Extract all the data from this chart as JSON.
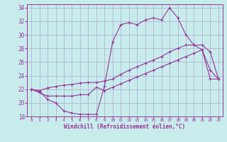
{
  "title": "",
  "xlabel": "Windchill (Refroidissement éolien,°C)",
  "bg_color": "#c8ecec",
  "line_color": "#993399",
  "grid_color": "#aaaacc",
  "xlim": [
    -0.5,
    23.5
  ],
  "ylim": [
    18,
    34.5
  ],
  "yticks": [
    18,
    20,
    22,
    24,
    26,
    28,
    30,
    32,
    34
  ],
  "xticks": [
    0,
    1,
    2,
    3,
    4,
    5,
    6,
    7,
    8,
    9,
    10,
    11,
    12,
    13,
    14,
    15,
    16,
    17,
    18,
    19,
    20,
    21,
    22,
    23
  ],
  "line1_x": [
    0,
    1,
    2,
    3,
    4,
    5,
    6,
    7,
    8,
    9,
    10,
    11,
    12,
    13,
    14,
    15,
    16,
    17,
    18,
    19,
    20,
    21,
    22,
    23
  ],
  "line1_y": [
    22.0,
    21.7,
    20.5,
    20.0,
    18.8,
    18.5,
    18.3,
    18.3,
    18.3,
    22.5,
    29.0,
    31.5,
    31.8,
    31.5,
    32.2,
    32.5,
    32.2,
    34.0,
    32.5,
    30.0,
    28.5,
    27.8,
    24.8,
    23.5
  ],
  "line2_x": [
    0,
    1,
    2,
    3,
    4,
    5,
    6,
    7,
    8,
    9,
    10,
    11,
    12,
    13,
    14,
    15,
    16,
    17,
    18,
    19,
    20,
    21,
    22,
    23
  ],
  "line2_y": [
    22.0,
    21.8,
    22.2,
    22.4,
    22.6,
    22.7,
    22.9,
    23.0,
    23.0,
    23.2,
    23.5,
    24.2,
    24.8,
    25.3,
    25.8,
    26.3,
    26.8,
    27.5,
    28.0,
    28.5,
    28.5,
    28.5,
    27.5,
    23.5
  ],
  "line3_x": [
    0,
    1,
    2,
    3,
    4,
    5,
    6,
    7,
    8,
    9,
    10,
    11,
    12,
    13,
    14,
    15,
    16,
    17,
    18,
    19,
    20,
    21,
    22,
    23
  ],
  "line3_y": [
    22.0,
    21.5,
    21.0,
    21.0,
    21.0,
    21.0,
    21.2,
    21.2,
    22.3,
    21.8,
    22.3,
    22.8,
    23.3,
    23.8,
    24.3,
    24.8,
    25.3,
    25.8,
    26.3,
    26.8,
    27.3,
    27.8,
    23.5,
    23.5
  ],
  "marker": "+"
}
